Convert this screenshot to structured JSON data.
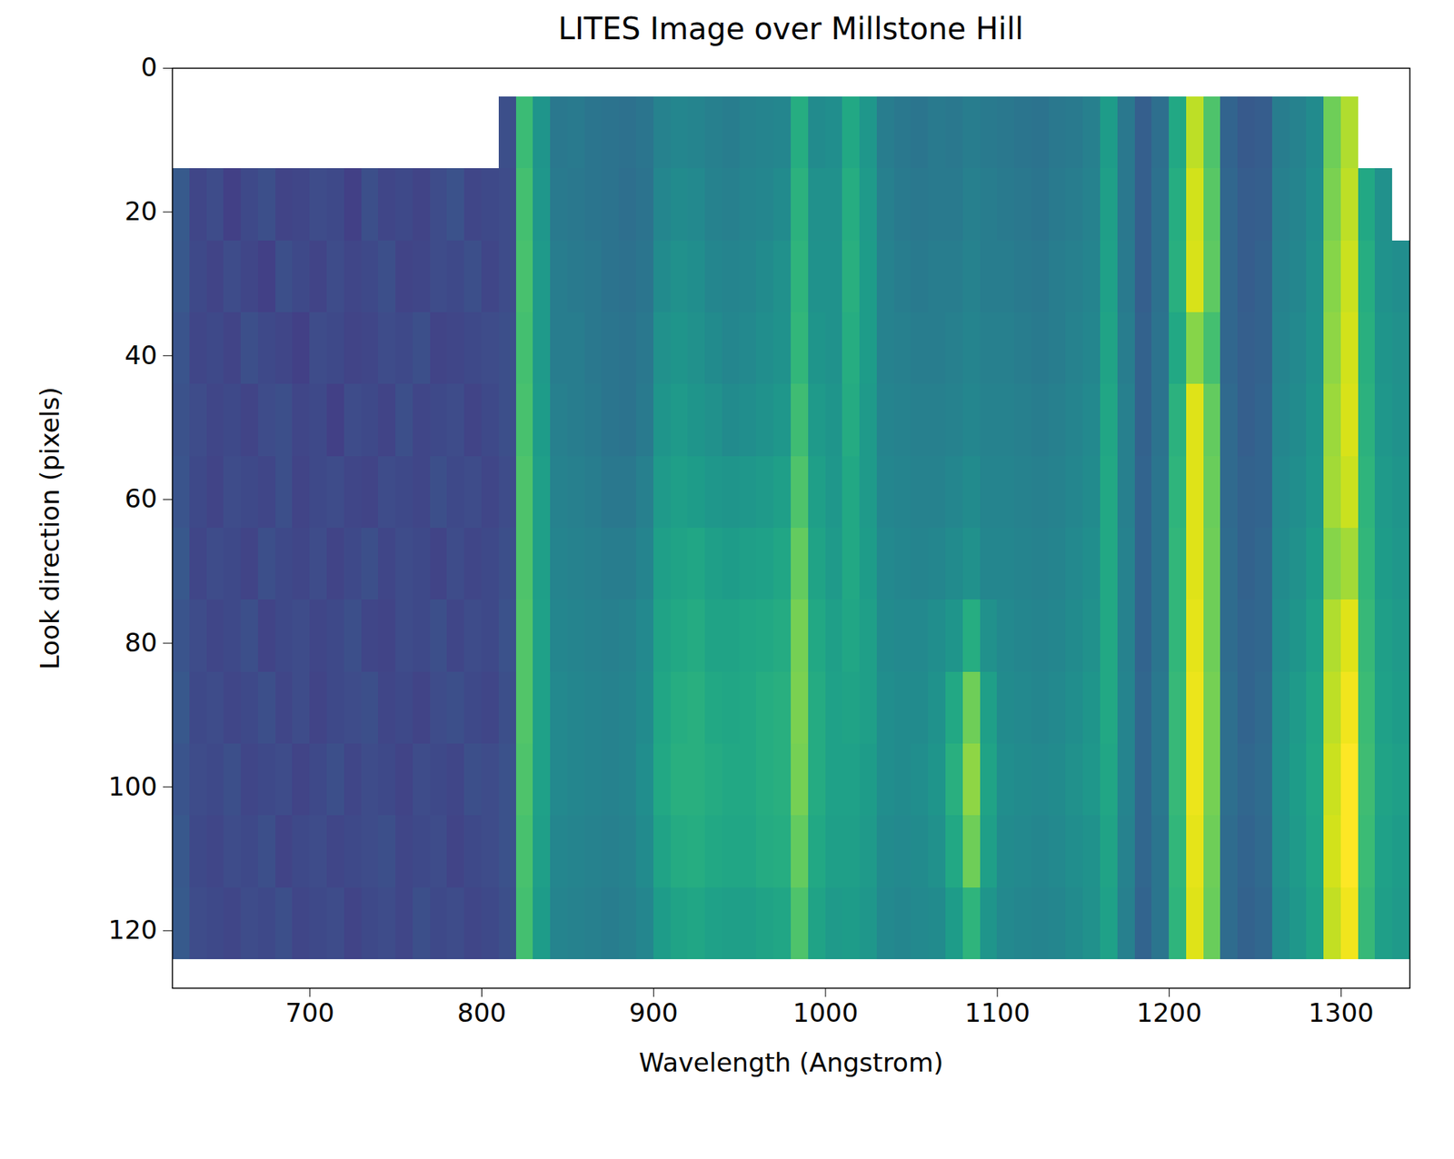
{
  "chart_data": {
    "type": "heatmap",
    "title": "LITES Image over Millstone Hill",
    "x_label": "Wavelength (Angstrom)",
    "y_label": "Look direction (pixels)",
    "xlim": [
      620,
      1340
    ],
    "xticks": [
      700,
      800,
      900,
      1000,
      1100,
      1200,
      1300
    ],
    "ylim": [
      128,
      0
    ],
    "yticks": [
      0,
      20,
      40,
      60,
      80,
      100,
      120
    ],
    "zlim": [
      0,
      10
    ],
    "x_edges": [
      620,
      630,
      640,
      650,
      660,
      670,
      680,
      690,
      700,
      710,
      720,
      730,
      740,
      750,
      760,
      770,
      780,
      790,
      800,
      810,
      820,
      830,
      840,
      850,
      860,
      870,
      880,
      890,
      900,
      910,
      920,
      930,
      940,
      950,
      960,
      970,
      980,
      990,
      1000,
      1010,
      1020,
      1030,
      1040,
      1050,
      1060,
      1070,
      1080,
      1090,
      1100,
      1110,
      1120,
      1130,
      1140,
      1150,
      1160,
      1170,
      1180,
      1190,
      1200,
      1210,
      1220,
      1230,
      1240,
      1250,
      1260,
      1270,
      1280,
      1290,
      1300,
      1310,
      1320,
      1330,
      1340
    ],
    "y_edges": [
      4,
      14,
      24,
      34,
      44,
      54,
      64,
      74,
      84,
      94,
      104,
      114,
      124
    ],
    "values": [
      [
        null,
        null,
        null,
        null,
        null,
        null,
        null,
        null,
        null,
        null,
        null,
        null,
        null,
        null,
        null,
        null,
        null,
        null,
        null,
        2.4,
        6.8,
        5.2,
        4.0,
        4.1,
        3.9,
        3.8,
        3.7,
        3.9,
        4.4,
        4.6,
        4.5,
        4.3,
        4.2,
        4.4,
        4.5,
        4.6,
        6.2,
        4.8,
        4.9,
        6.0,
        5.3,
        4.2,
        4.0,
        3.9,
        4.1,
        4.0,
        4.2,
        4.1,
        4.0,
        3.9,
        3.8,
        4.0,
        4.1,
        4.3,
        5.5,
        4.0,
        3.0,
        3.6,
        6.0,
        9.0,
        7.2,
        3.2,
        2.8,
        2.9,
        4.2,
        4.4,
        4.8,
        7.8,
        8.8,
        null,
        null,
        null
      ],
      [
        2.8,
        2.1,
        2.3,
        1.9,
        2.2,
        2.4,
        2.0,
        2.1,
        2.3,
        2.2,
        1.9,
        2.4,
        2.1,
        2.2,
        2.0,
        2.3,
        2.5,
        2.1,
        2.2,
        2.3,
        7.0,
        5.3,
        4.1,
        4.0,
        3.9,
        3.8,
        3.6,
        3.8,
        4.6,
        4.8,
        4.7,
        4.4,
        4.3,
        4.5,
        4.6,
        4.8,
        6.4,
        5.0,
        5.0,
        6.2,
        5.4,
        4.3,
        4.1,
        4.0,
        4.1,
        4.1,
        4.3,
        4.2,
        4.1,
        4.0,
        3.9,
        4.1,
        4.2,
        4.4,
        5.6,
        4.0,
        3.0,
        3.7,
        6.2,
        9.3,
        7.4,
        3.3,
        2.9,
        3.0,
        4.3,
        4.5,
        4.9,
        8.0,
        9.0,
        6.0,
        5.0,
        null
      ],
      [
        2.7,
        2.2,
        2.0,
        2.3,
        2.1,
        1.9,
        2.4,
        2.2,
        2.0,
        2.3,
        2.1,
        2.2,
        2.4,
        2.0,
        2.1,
        2.3,
        2.2,
        2.4,
        2.1,
        2.3,
        7.1,
        5.4,
        4.2,
        4.1,
        4.0,
        3.8,
        3.7,
        3.9,
        4.8,
        5.0,
        4.9,
        4.6,
        4.5,
        4.6,
        4.8,
        5.0,
        6.5,
        5.1,
        5.1,
        6.3,
        5.5,
        4.4,
        4.2,
        4.1,
        4.2,
        4.2,
        4.4,
        4.2,
        4.2,
        4.1,
        4.0,
        4.2,
        4.3,
        4.5,
        5.7,
        4.1,
        3.0,
        3.7,
        6.3,
        9.4,
        7.5,
        3.3,
        2.9,
        3.1,
        4.4,
        4.6,
        5.0,
        8.2,
        9.2,
        6.2,
        5.1,
        4.9
      ],
      [
        2.6,
        2.1,
        2.2,
        2.0,
        2.4,
        2.2,
        2.1,
        1.9,
        2.3,
        2.2,
        2.0,
        2.1,
        2.3,
        2.2,
        2.4,
        2.0,
        2.1,
        2.2,
        2.3,
        2.4,
        7.0,
        5.4,
        4.2,
        4.2,
        4.0,
        3.9,
        3.8,
        4.0,
        5.0,
        5.2,
        5.0,
        4.8,
        4.6,
        4.7,
        4.9,
        5.1,
        6.6,
        5.2,
        5.1,
        6.2,
        5.5,
        4.4,
        4.3,
        4.2,
        4.2,
        4.3,
        4.5,
        4.3,
        4.3,
        4.2,
        4.1,
        4.2,
        4.4,
        4.6,
        5.8,
        4.2,
        3.1,
        3.8,
        6.0,
        8.2,
        7.0,
        3.3,
        3.0,
        3.1,
        4.5,
        4.7,
        5.1,
        8.3,
        9.3,
        6.3,
        5.2,
        5.0
      ],
      [
        2.5,
        2.3,
        2.1,
        2.2,
        2.0,
        2.3,
        2.4,
        2.1,
        2.2,
        1.9,
        2.3,
        2.2,
        2.0,
        2.4,
        2.1,
        2.2,
        2.3,
        2.0,
        2.2,
        2.4,
        7.1,
        5.5,
        4.3,
        4.2,
        4.1,
        3.9,
        3.8,
        4.1,
        5.2,
        5.4,
        5.2,
        5.0,
        4.8,
        4.9,
        5.1,
        5.3,
        6.9,
        5.4,
        5.2,
        6.1,
        5.4,
        4.5,
        4.4,
        4.3,
        4.3,
        4.4,
        4.6,
        4.4,
        4.4,
        4.3,
        4.2,
        4.3,
        4.5,
        4.7,
        5.9,
        4.3,
        3.1,
        3.8,
        6.4,
        9.5,
        7.6,
        3.4,
        3.0,
        3.2,
        4.6,
        4.8,
        5.2,
        8.5,
        9.4,
        6.4,
        5.3,
        5.1
      ],
      [
        2.6,
        2.2,
        2.0,
        2.3,
        2.2,
        2.1,
        2.4,
        2.0,
        2.2,
        2.3,
        2.1,
        2.0,
        2.3,
        2.2,
        2.1,
        2.4,
        2.2,
        2.3,
        2.1,
        2.3,
        7.2,
        5.6,
        4.4,
        4.3,
        4.2,
        4.0,
        4.0,
        4.3,
        5.4,
        5.6,
        5.5,
        5.3,
        5.2,
        5.3,
        5.4,
        5.6,
        7.2,
        5.6,
        5.3,
        6.0,
        5.4,
        4.6,
        4.5,
        4.4,
        4.4,
        4.6,
        4.8,
        4.5,
        4.5,
        4.4,
        4.3,
        4.4,
        4.6,
        4.8,
        6.0,
        4.3,
        3.2,
        3.9,
        6.5,
        9.5,
        7.7,
        3.4,
        3.1,
        3.2,
        4.7,
        4.9,
        5.3,
        8.6,
        9.2,
        6.5,
        5.4,
        5.2
      ],
      [
        2.7,
        2.1,
        2.3,
        2.2,
        2.0,
        2.4,
        2.2,
        2.1,
        2.3,
        2.0,
        2.2,
        2.4,
        2.1,
        2.3,
        2.2,
        2.0,
        2.3,
        2.1,
        2.2,
        2.4,
        7.2,
        5.6,
        4.5,
        4.4,
        4.3,
        4.2,
        4.2,
        4.5,
        5.6,
        5.8,
        5.9,
        5.6,
        5.5,
        5.6,
        5.7,
        5.9,
        7.6,
        5.8,
        5.4,
        6.0,
        5.5,
        4.7,
        4.6,
        4.5,
        4.6,
        4.8,
        5.0,
        4.6,
        4.6,
        4.5,
        4.4,
        4.5,
        4.7,
        4.9,
        6.0,
        4.4,
        3.2,
        3.9,
        6.6,
        9.5,
        7.8,
        3.5,
        3.1,
        3.3,
        4.8,
        5.0,
        5.5,
        8.2,
        8.6,
        6.6,
        5.5,
        5.3
      ],
      [
        2.6,
        2.3,
        2.1,
        2.2,
        2.4,
        2.0,
        2.2,
        2.3,
        2.1,
        2.2,
        2.4,
        2.1,
        2.0,
        2.3,
        2.2,
        2.4,
        2.1,
        2.3,
        2.2,
        2.5,
        7.3,
        5.7,
        4.6,
        4.5,
        4.4,
        4.3,
        4.4,
        4.7,
        5.8,
        6.0,
        6.1,
        5.8,
        5.8,
        5.9,
        6.0,
        6.1,
        7.9,
        6.0,
        5.6,
        5.9,
        5.6,
        4.8,
        4.7,
        4.7,
        4.9,
        5.2,
        6.2,
        5.0,
        4.7,
        4.6,
        4.5,
        4.6,
        4.8,
        5.0,
        6.0,
        4.4,
        3.2,
        3.9,
        6.6,
        9.6,
        7.8,
        3.5,
        3.2,
        3.3,
        4.9,
        5.2,
        5.7,
        8.8,
        9.5,
        6.7,
        5.6,
        5.4
      ],
      [
        2.7,
        2.2,
        2.3,
        2.1,
        2.2,
        2.4,
        2.1,
        2.3,
        2.0,
        2.2,
        2.3,
        2.4,
        2.1,
        2.2,
        2.0,
        2.3,
        2.4,
        2.2,
        2.1,
        2.4,
        7.3,
        5.7,
        4.7,
        4.6,
        4.5,
        4.4,
        4.5,
        4.8,
        5.9,
        6.2,
        6.3,
        6.0,
        5.9,
        6.0,
        6.2,
        6.3,
        8.0,
        6.1,
        5.7,
        5.8,
        5.6,
        4.9,
        4.8,
        4.8,
        5.1,
        6.0,
        7.8,
        5.6,
        4.8,
        4.7,
        4.6,
        4.7,
        4.9,
        5.2,
        6.0,
        4.5,
        3.3,
        4.0,
        6.7,
        9.7,
        7.9,
        3.6,
        3.2,
        3.4,
        5.0,
        5.4,
        5.9,
        9.0,
        9.8,
        6.8,
        5.7,
        5.5
      ],
      [
        2.6,
        2.3,
        2.2,
        2.4,
        2.1,
        2.2,
        2.3,
        2.0,
        2.2,
        2.4,
        2.1,
        2.3,
        2.2,
        2.0,
        2.3,
        2.2,
        2.1,
        2.4,
        2.3,
        2.5,
        7.2,
        5.7,
        4.7,
        4.6,
        4.5,
        4.4,
        4.5,
        4.9,
        6.0,
        6.3,
        6.3,
        6.1,
        6.0,
        6.0,
        6.2,
        6.3,
        7.9,
        6.1,
        5.7,
        5.7,
        5.5,
        4.9,
        4.8,
        4.9,
        5.2,
        6.3,
        8.3,
        5.8,
        4.9,
        4.8,
        4.7,
        4.8,
        5.0,
        5.3,
        5.9,
        4.5,
        3.3,
        4.0,
        6.7,
        9.7,
        7.9,
        3.6,
        3.3,
        3.5,
        5.1,
        5.5,
        6.0,
        9.2,
        10.0,
        6.9,
        5.8,
        5.6
      ],
      [
        2.7,
        2.2,
        2.1,
        2.3,
        2.2,
        2.4,
        2.0,
        2.2,
        2.3,
        2.1,
        2.2,
        2.3,
        2.4,
        2.1,
        2.2,
        2.3,
        2.0,
        2.2,
        2.3,
        2.5,
        7.1,
        5.6,
        4.6,
        4.5,
        4.4,
        4.3,
        4.4,
        4.8,
        5.8,
        6.1,
        6.2,
        6.0,
        5.9,
        5.9,
        6.1,
        6.2,
        7.6,
        6.0,
        5.6,
        5.6,
        5.4,
        4.8,
        4.7,
        4.8,
        5.0,
        6.0,
        7.8,
        5.6,
        4.8,
        4.7,
        4.6,
        4.7,
        4.9,
        5.1,
        5.8,
        4.4,
        3.3,
        3.9,
        6.6,
        9.6,
        7.8,
        3.5,
        3.2,
        3.4,
        5.0,
        5.4,
        5.9,
        9.3,
        10.0,
        6.8,
        5.7,
        5.5
      ],
      [
        2.8,
        2.3,
        2.2,
        2.1,
        2.3,
        2.2,
        2.4,
        2.1,
        2.2,
        2.3,
        2.0,
        2.2,
        2.3,
        2.1,
        2.4,
        2.2,
        2.3,
        2.1,
        2.2,
        2.4,
        7.0,
        5.5,
        4.5,
        4.4,
        4.3,
        4.2,
        4.3,
        4.6,
        5.5,
        5.8,
        5.9,
        5.7,
        5.6,
        5.6,
        5.8,
        5.9,
        7.2,
        5.8,
        5.4,
        5.5,
        5.3,
        4.7,
        4.6,
        4.7,
        4.8,
        5.5,
        6.5,
        5.2,
        4.7,
        4.6,
        4.5,
        4.6,
        4.8,
        5.0,
        5.7,
        4.3,
        3.2,
        3.9,
        6.5,
        9.5,
        7.7,
        3.5,
        3.1,
        3.3,
        4.9,
        5.3,
        5.8,
        9.1,
        9.8,
        6.7,
        5.6,
        5.4
      ]
    ]
  }
}
